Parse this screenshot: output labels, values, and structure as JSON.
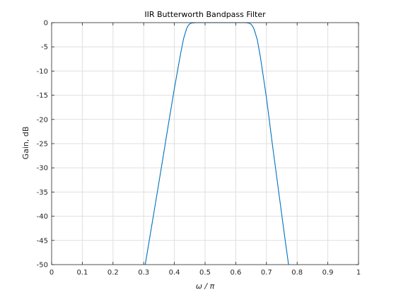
{
  "chart_data": {
    "type": "line",
    "title": "IIR Butterworth Bandpass Filter",
    "xlabel": "ω / π",
    "ylabel": "Gain, dB",
    "xlim": [
      0,
      1
    ],
    "ylim": [
      -50,
      0
    ],
    "x_ticks": [
      0,
      0.1,
      0.2,
      0.3,
      0.4,
      0.5,
      0.6,
      0.7,
      0.8,
      0.9,
      1
    ],
    "x_tick_labels": [
      "0",
      "0.1",
      "0.2",
      "0.3",
      "0.4",
      "0.5",
      "0.6",
      "0.7",
      "0.8",
      "0.9",
      "1"
    ],
    "y_ticks": [
      0,
      -5,
      -10,
      -15,
      -20,
      -25,
      -30,
      -35,
      -40,
      -45,
      -50
    ],
    "y_tick_labels": [
      "0",
      "-5",
      "-10",
      "-15",
      "-20",
      "-25",
      "-30",
      "-35",
      "-40",
      "-45",
      "-50"
    ],
    "grid": true,
    "colors": {
      "series": "#0072BD",
      "grid": "#dfdfdf",
      "axes": "#262626"
    },
    "series": [
      {
        "x": [
          0.305,
          0.32,
          0.34,
          0.36,
          0.38,
          0.4,
          0.42,
          0.43,
          0.44,
          0.445,
          0.45,
          0.455,
          0.46,
          0.47,
          0.5,
          0.55,
          0.6,
          0.63,
          0.64,
          0.645,
          0.65,
          0.655,
          0.66,
          0.67,
          0.68,
          0.7,
          0.72,
          0.74,
          0.76,
          0.772
        ],
        "y": [
          -50,
          -44.3,
          -36.7,
          -29,
          -21.2,
          -13.6,
          -6.5,
          -3.3,
          -1.2,
          -0.6,
          -0.25,
          -0.1,
          -0.04,
          0,
          0,
          0,
          0,
          0,
          -0.05,
          -0.15,
          -0.35,
          -0.75,
          -1.4,
          -3.5,
          -7,
          -15.5,
          -25.5,
          -35,
          -44.5,
          -50
        ]
      }
    ]
  }
}
